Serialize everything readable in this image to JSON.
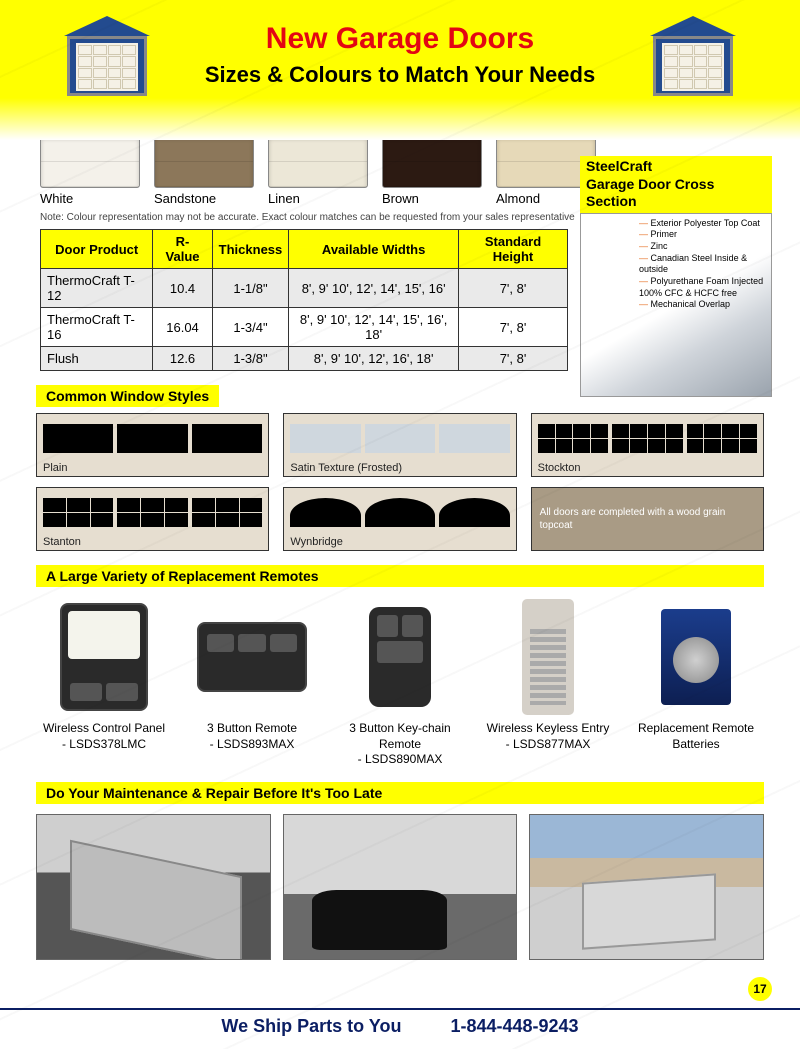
{
  "header": {
    "title": "New Garage Doors",
    "subtitle": "Sizes & Colours  to Match Your Needs",
    "title_color": "#e30613",
    "band_color": "#ffff00"
  },
  "colours": {
    "items": [
      {
        "label": "White",
        "hex": "#f4f1ea"
      },
      {
        "label": "Sandstone",
        "hex": "#8c775a"
      },
      {
        "label": "Linen",
        "hex": "#ece7d7"
      },
      {
        "label": "Brown",
        "hex": "#2c1a12"
      },
      {
        "label": "Almond",
        "hex": "#e6d9b8"
      }
    ],
    "note": "Note: Colour representation may not be accurate. Exact colour matches can be requested from your sales representative"
  },
  "cross_section": {
    "brand": "SteelCraft",
    "title": "Garage Door Cross Section",
    "layers": [
      "Exterior Polyester Top Coat",
      "Primer",
      "Zinc",
      "Canadian Steel Inside & outside",
      "Polyurethane Foam Injected 100% CFC & HCFC free",
      "Mechanical Overlap"
    ],
    "header_bg": "#ffff00"
  },
  "spec_table": {
    "columns": [
      "Door Product",
      "R-Value",
      "Thickness",
      "Available Widths",
      "Standard Height"
    ],
    "rows": [
      [
        "ThermoCraft T-12",
        "10.4",
        "1-1/8\"",
        "8', 9' 10', 12', 14', 15', 16'",
        "7',    8'"
      ],
      [
        "ThermoCraft T-16",
        "16.04",
        "1-3/4\"",
        "8', 9' 10', 12', 14', 15', 16', 18'",
        "7',    8'"
      ],
      [
        "Flush",
        "12.6",
        "1-3/8\"",
        "8', 9' 10', 12', 16', 18'",
        "7',    8'"
      ]
    ],
    "header_bg": "#ffff00",
    "border_color": "#333333",
    "alt_row_bg": "#eaeaea"
  },
  "window_styles": {
    "section_label": "Common Window Styles",
    "items": [
      {
        "label": "Plain"
      },
      {
        "label": "Satin Texture (Frosted)"
      },
      {
        "label": "Stockton"
      },
      {
        "label": "Stanton"
      },
      {
        "label": "Wynbridge"
      },
      {
        "label": "All doors are completed with a wood grain topcoat",
        "is_note": true
      }
    ]
  },
  "remotes": {
    "section_label": "A Large Variety of Replacement Remotes",
    "items": [
      {
        "name": "Wireless Control Panel",
        "sku": "- LSDS378LMC"
      },
      {
        "name": "3 Button Remote",
        "sku": "- LSDS893MAX"
      },
      {
        "name": "3 Button Key-chain Remote",
        "sku": "- LSDS890MAX"
      },
      {
        "name": "Wireless Keyless Entry",
        "sku": "- LSDS877MAX"
      },
      {
        "name": "Replacement Remote Batteries",
        "sku": ""
      }
    ]
  },
  "maintenance": {
    "section_label": "Do Your Maintenance & Repair Before It's Too Late"
  },
  "footer": {
    "page_number": "17",
    "ship_text": "We Ship Parts to You",
    "phone": "1-844-448-9243",
    "rule_color": "#0b1e63"
  },
  "accent_yellow": "#ffff00"
}
